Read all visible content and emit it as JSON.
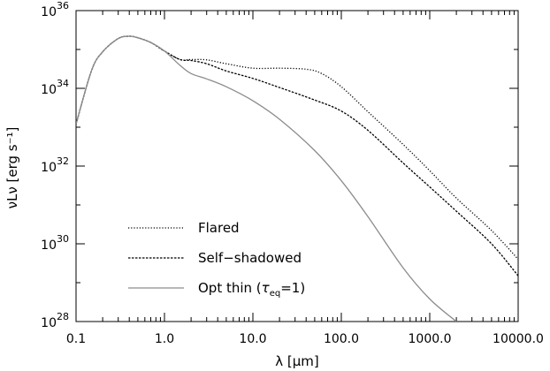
{
  "chart_data": {
    "type": "line",
    "x_scale": "log",
    "y_scale": "log",
    "xlim": [
      0.1,
      10000
    ],
    "ylim": [
      1e+28,
      1e+36
    ],
    "xlabel": "λ [μm]",
    "ylabel": "νLν [erg s⁻¹]",
    "x_ticks": [
      {
        "value": 0.1,
        "label": "0.1"
      },
      {
        "value": 1,
        "label": "1.0"
      },
      {
        "value": 10,
        "label": "10.0"
      },
      {
        "value": 100,
        "label": "100.0"
      },
      {
        "value": 1000,
        "label": "1000.0"
      },
      {
        "value": 10000,
        "label": "10000.0"
      }
    ],
    "y_ticks": [
      {
        "value": 1e+28,
        "base": "10",
        "exp": "28"
      },
      {
        "value": 1e+30,
        "base": "10",
        "exp": "30"
      },
      {
        "value": 1e+32,
        "base": "10",
        "exp": "32"
      },
      {
        "value": 1e+34,
        "base": "10",
        "exp": "34"
      },
      {
        "value": 1e+36,
        "base": "10",
        "exp": "36"
      }
    ],
    "legend_position": "bottom-left",
    "grid": false,
    "series": [
      {
        "name": "Flared",
        "style": "dotted",
        "color": "#000000",
        "x": [
          0.1,
          0.15,
          0.2,
          0.3,
          0.4,
          0.5,
          0.7,
          1.0,
          1.5,
          2.0,
          3.0,
          5.0,
          10,
          20,
          40,
          60,
          100,
          200,
          500,
          1000,
          2000,
          5000,
          10000
        ],
        "y": [
          1.2e+33,
          2.9e+34,
          8.7e+34,
          1.91e+35,
          2.19e+35,
          2e+35,
          1.51e+35,
          9.1e+34,
          5.5e+34,
          5.5e+34,
          5.4e+34,
          4.3e+34,
          3.3e+34,
          3.3e+34,
          3.1e+34,
          2.4e+34,
          1.1e+34,
          2.5e+33,
          3.6e+32,
          7.6e+31,
          1.5e+31,
          2.2e+30,
          4e+29
        ]
      },
      {
        "name": "Self-shadowed",
        "style": "dashed",
        "color": "#000000",
        "x": [
          0.1,
          0.15,
          0.2,
          0.3,
          0.4,
          0.5,
          0.7,
          1.0,
          1.5,
          2.0,
          3.0,
          5.0,
          10,
          20,
          50,
          100,
          200,
          500,
          1000,
          2000,
          5000,
          10000
        ],
        "y": [
          1.2e+33,
          2.9e+34,
          8.7e+34,
          1.91e+35,
          2.19e+35,
          2e+35,
          1.51e+35,
          9.1e+34,
          5.5e+34,
          5.2e+34,
          4.3e+34,
          2.8e+34,
          1.8e+34,
          1.05e+34,
          5e+33,
          2.6e+33,
          8.3e+32,
          1.2e+32,
          2.9e+31,
          6.9e+30,
          1e+30,
          1.5e+29
        ]
      },
      {
        "name": "Opt thin (τeq=1)",
        "style": "solid",
        "color": "#8c8c8c",
        "x": [
          0.1,
          0.15,
          0.2,
          0.3,
          0.4,
          0.5,
          0.7,
          1.0,
          1.5,
          2.0,
          3.0,
          5.0,
          10,
          20,
          50,
          100,
          200,
          500,
          1000,
          2000
        ],
        "y": [
          1.2e+33,
          2.9e+34,
          8.7e+34,
          1.91e+35,
          2.19e+35,
          2e+35,
          1.51e+35,
          9.1e+34,
          3.9e+34,
          2.4e+34,
          1.75e+34,
          1.1e+34,
          4.8e+33,
          1.6e+33,
          2.5e+32,
          4.2e+31,
          5e+30,
          2.4e+29,
          3.8e+28,
          1e+28
        ]
      }
    ],
    "legend": [
      {
        "label": "Flared",
        "style": "dotted",
        "color": "#000000"
      },
      {
        "label": "Self−shadowed",
        "style": "dashed",
        "color": "#000000"
      },
      {
        "label_prefix": "Opt thin (",
        "label_tau": "τ",
        "label_sub": "eq",
        "label_suffix": "=1)",
        "style": "solid",
        "color": "#8c8c8c"
      }
    ]
  }
}
